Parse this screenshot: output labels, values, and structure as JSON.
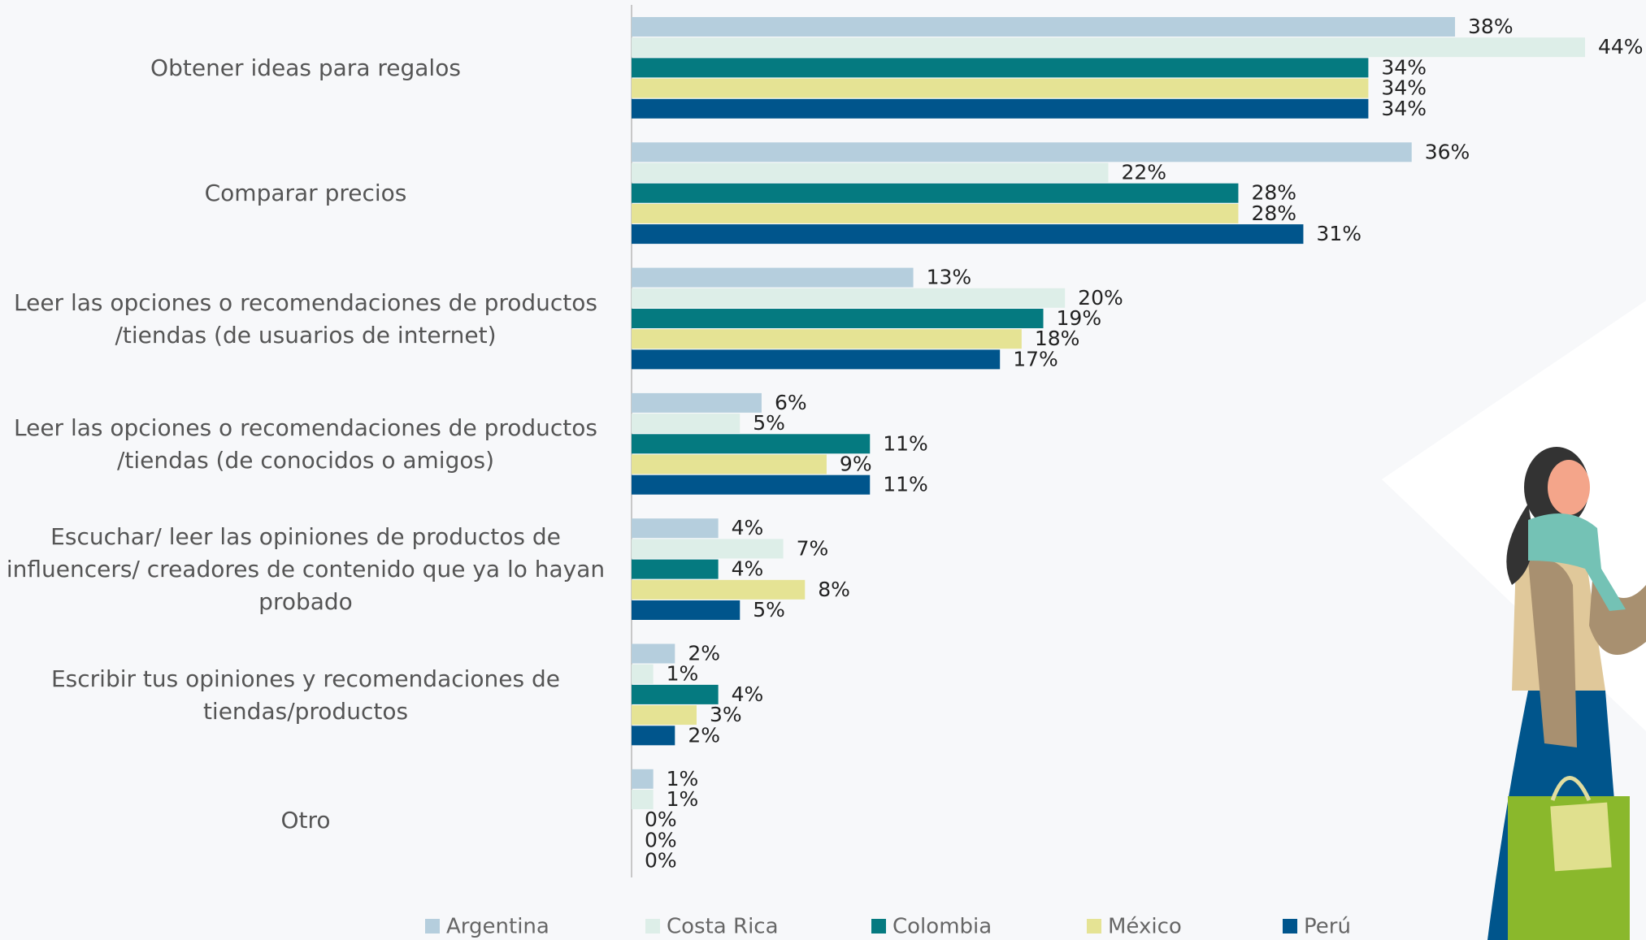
{
  "chart_data": {
    "type": "hbar",
    "categories": [
      "Obtener ideas para regalos",
      "Comparar precios",
      "Leer las opciones o recomendaciones de productos /tiendas (de usuarios de internet)",
      "Leer las opciones o recomendaciones de productos /tiendas (de conocidos o amigos)",
      "Escuchar/ leer las opiniones de productos de influencers/ creadores de contenido que ya lo hayan probado",
      "Escribir tus opiniones y recomendaciones de tiendas/productos",
      "Otro"
    ],
    "series": [
      {
        "name": "Argentina",
        "color": "#b5cedd",
        "values": [
          38,
          36,
          13,
          6,
          4,
          2,
          1
        ],
        "value_labels": [
          "38%",
          "36%",
          "13%",
          "6%",
          "4%",
          "2%",
          "1%"
        ]
      },
      {
        "name": "Costa Rica",
        "color": "#ddeee8",
        "values": [
          44,
          22,
          20,
          5,
          7,
          1,
          1
        ],
        "value_labels": [
          "44%",
          "22%",
          "20%",
          "5%",
          "7%",
          "1%",
          "1%"
        ]
      },
      {
        "name": "Colombia",
        "color": "#057a80",
        "values": [
          34,
          28,
          19,
          11,
          4,
          4,
          0
        ],
        "value_labels": [
          "34%",
          "28%",
          "19%",
          "11%",
          "4%",
          "4%",
          "0%"
        ]
      },
      {
        "name": "México",
        "color": "#e5e394",
        "values": [
          34,
          28,
          18,
          9,
          8,
          3,
          0
        ],
        "value_labels": [
          "34%",
          "28%",
          "18%",
          "9%",
          "8%",
          "3%",
          "0%"
        ]
      },
      {
        "name": "Perú",
        "color": "#00558c",
        "values": [
          34,
          31,
          17,
          11,
          5,
          2,
          0
        ],
        "value_labels": [
          "34%",
          "31%",
          "17%",
          "11%",
          "5%",
          "2%",
          "0%"
        ]
      }
    ]
  }
}
